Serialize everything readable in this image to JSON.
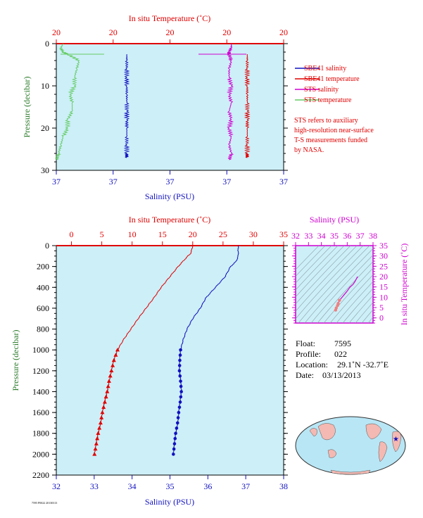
{
  "chart_data": [
    {
      "type": "line",
      "panel": "near-surface",
      "top_xlabel": "In situ Temperature (˚C)",
      "bottom_xlabel": "Salinity (PSU)",
      "ylabel": "Pressure (decibar)",
      "top_ticks": [
        "20",
        "20",
        "20",
        "20",
        "20"
      ],
      "bottom_ticks": [
        "37",
        "37",
        "37",
        "37",
        "37"
      ],
      "y_ticks": [
        "0",
        "10",
        "20",
        "30"
      ],
      "ylim": [
        0,
        30
      ],
      "y_reversed": true,
      "legend": [
        {
          "label": "SBE41 salinity",
          "color": "#1010c0"
        },
        {
          "label": "SBE41 temperature",
          "color": "#e00000"
        },
        {
          "label": "STS salinity",
          "color": "#d000d0"
        },
        {
          "label": "STS temperature",
          "color": "#66cc66"
        }
      ],
      "note": [
        "STS refers to auxiliary",
        "high-resolution near-surface",
        "T-S measurements funded",
        "by NASA."
      ],
      "series": [
        {
          "name": "SBE41 salinity",
          "color": "#1010c0",
          "p": [
            2.5,
            4,
            6,
            8,
            10,
            12,
            14,
            16,
            18,
            20,
            22,
            24,
            26,
            27
          ],
          "x": [
            0.31,
            0.31,
            0.31,
            0.31,
            0.31,
            0.31,
            0.31,
            0.31,
            0.31,
            0.31,
            0.31,
            0.31,
            0.31,
            0.31
          ]
        },
        {
          "name": "SBE41 temperature",
          "color": "#e00000",
          "p": [
            2.5,
            4,
            6,
            8,
            10,
            12,
            14,
            16,
            18,
            20,
            22,
            24,
            26,
            27
          ],
          "x": [
            0.84,
            0.84,
            0.84,
            0.84,
            0.84,
            0.84,
            0.84,
            0.84,
            0.84,
            0.84,
            0.84,
            0.84,
            0.84,
            0.84
          ]
        },
        {
          "name": "STS salinity",
          "color": "#d000d0",
          "p": [
            0,
            1,
            2,
            2.5,
            4,
            6,
            8,
            10,
            12,
            14,
            16,
            18,
            20,
            22,
            24,
            26,
            27.5
          ],
          "x": [
            0.77,
            0.77,
            0.76,
            0.76,
            0.77,
            0.76,
            0.76,
            0.77,
            0.76,
            0.77,
            0.76,
            0.77,
            0.76,
            0.77,
            0.76,
            0.77,
            0.76
          ]
        },
        {
          "name": "STS temperature",
          "color": "#66cc66",
          "p": [
            0,
            1,
            2,
            2.5,
            4,
            6,
            8,
            10,
            12,
            14,
            16,
            18,
            20,
            22,
            24,
            26,
            27.5
          ],
          "x": [
            0.03,
            0.02,
            0.03,
            0.05,
            0.1,
            0.09,
            0.08,
            0.08,
            0.06,
            0.07,
            0.07,
            0.05,
            0.05,
            0.03,
            0.02,
            0.01,
            0.0
          ]
        }
      ]
    },
    {
      "type": "line",
      "panel": "full-profile",
      "top_xlabel": "In situ Temperature (˚C)",
      "bottom_xlabel": "Salinity (PSU)",
      "ylabel": "Pressure (decibar)",
      "temp_ticks": [
        "0",
        "5",
        "10",
        "15",
        "20",
        "25",
        "30",
        "35"
      ],
      "temp_lim": [
        -2.5,
        35
      ],
      "sal_ticks": [
        "32",
        "33",
        "34",
        "35",
        "36",
        "37",
        "38"
      ],
      "sal_lim": [
        32,
        38
      ],
      "y_ticks": [
        "0",
        "200",
        "400",
        "600",
        "800",
        "1000",
        "1200",
        "1400",
        "1600",
        "1800",
        "2000",
        "2200"
      ],
      "ylim": [
        0,
        2200
      ],
      "y_reversed": true,
      "series": [
        {
          "name": "temperature",
          "color": "#e00000",
          "p": [
            0,
            50,
            80,
            100,
            150,
            200,
            300,
            400,
            500,
            600,
            700,
            800,
            900,
            1000,
            1050,
            1100,
            1200,
            1300,
            1400,
            1500,
            1600,
            1700,
            1800,
            1900,
            2000
          ],
          "x": [
            20.0,
            19.8,
            19.6,
            19.2,
            18.4,
            17.6,
            16.2,
            14.8,
            13.6,
            12.3,
            11.0,
            9.8,
            8.6,
            7.6,
            7.3,
            7.0,
            6.6,
            6.2,
            5.9,
            5.5,
            5.1,
            4.8,
            4.4,
            4.1,
            3.8
          ]
        },
        {
          "name": "salinity",
          "color": "#1010c0",
          "p": [
            0,
            50,
            100,
            150,
            200,
            300,
            400,
            500,
            600,
            700,
            800,
            900,
            1000,
            1050,
            1100,
            1200,
            1300,
            1400,
            1500,
            1600,
            1700,
            1800,
            1900,
            2000
          ],
          "x": [
            36.8,
            36.8,
            36.8,
            36.75,
            36.6,
            36.45,
            36.2,
            35.95,
            35.8,
            35.6,
            35.45,
            35.35,
            35.28,
            35.27,
            35.26,
            35.25,
            35.28,
            35.3,
            35.27,
            35.23,
            35.2,
            35.15,
            35.12,
            35.09
          ]
        },
        {
          "name": "sample markers",
          "p": [
            1000,
            1050,
            1100,
            1150,
            1200,
            1250,
            1300,
            1350,
            1400,
            1450,
            1500,
            1550,
            1600,
            1650,
            1700,
            1750,
            1800,
            1850,
            1900,
            1950,
            2000
          ]
        }
      ]
    },
    {
      "type": "scatter",
      "panel": "T-S diagram",
      "top_xlabel": "Salinity (PSU)",
      "right_ylabel": "In situ Temperature (˚C)",
      "sal_ticks": [
        "32",
        "33",
        "34",
        "35",
        "36",
        "37",
        "38"
      ],
      "sal_lim": [
        32,
        38
      ],
      "temp_ticks": [
        "0",
        "5",
        "10",
        "15",
        "20",
        "25",
        "30",
        "35"
      ],
      "temp_lim": [
        -2.5,
        35
      ],
      "curve_s": [
        35.1,
        35.15,
        35.25,
        35.3,
        35.4,
        35.6,
        35.8,
        36.0,
        36.2,
        36.45,
        36.6,
        36.8
      ],
      "curve_t": [
        3.8,
        4.8,
        6.0,
        7.0,
        8.5,
        10.0,
        11.5,
        13.0,
        14.8,
        16.2,
        17.6,
        20.0
      ]
    }
  ],
  "float_info": {
    "float_label": "Float:",
    "float_value": "7595",
    "profile_label": "Profile:",
    "profile_value": "022",
    "location_label": "Location:",
    "location_value": "29.1˚N  -32.7˚E",
    "date_label": "Date:",
    "date_value": "03/13/2013"
  },
  "footer": "7595 P0022 20130313",
  "colors": {
    "plot_bg": "#cdeff8",
    "red": "#e00000",
    "blue": "#1010c0",
    "magenta": "#d000d0",
    "green": "#66cc66",
    "axis_label_green": "#2a7a2a"
  }
}
